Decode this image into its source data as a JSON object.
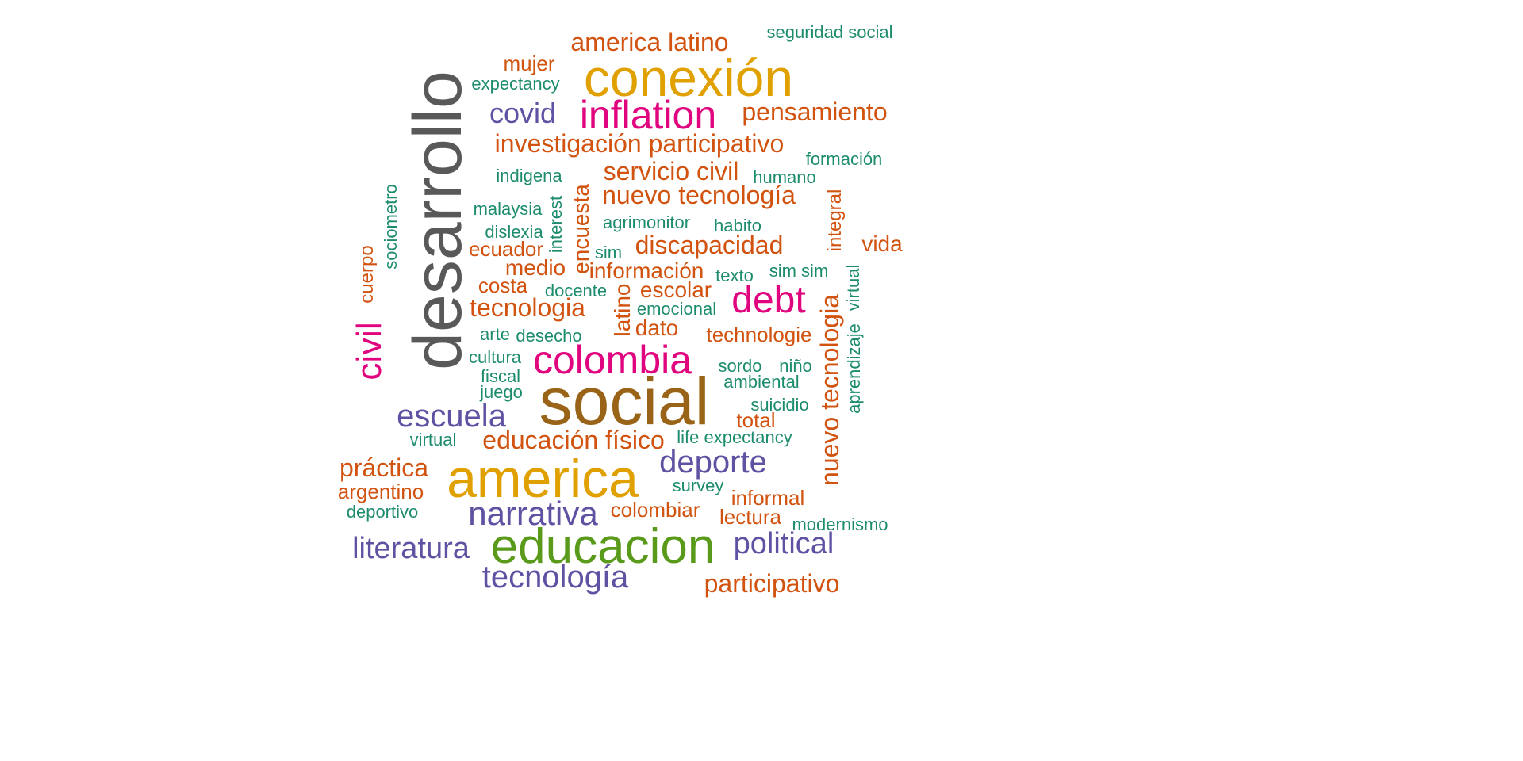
{
  "palette": {
    "gray": "#595959",
    "gold": "#e0a100",
    "brown": "#9a6418",
    "magenta": "#e0047f",
    "green": "#5a9a1a",
    "purple": "#6151a3",
    "orange": "#d2530f",
    "teal": "#1d8c6e"
  },
  "words": [
    {
      "text": "desarrollo",
      "color": "gray",
      "weight": 10,
      "orientation": "vertical"
    },
    {
      "text": "social",
      "color": "brown",
      "weight": 9,
      "orientation": "horizontal"
    },
    {
      "text": "conexión",
      "color": "gold",
      "weight": 8,
      "orientation": "horizontal"
    },
    {
      "text": "america",
      "color": "gold",
      "weight": 8,
      "orientation": "horizontal"
    },
    {
      "text": "educacion",
      "color": "green",
      "weight": 7,
      "orientation": "horizontal"
    },
    {
      "text": "inflation",
      "color": "magenta",
      "weight": 6,
      "orientation": "horizontal"
    },
    {
      "text": "colombia",
      "color": "magenta",
      "weight": 6,
      "orientation": "horizontal"
    },
    {
      "text": "debt",
      "color": "magenta",
      "weight": 6,
      "orientation": "horizontal"
    },
    {
      "text": "civil",
      "color": "magenta",
      "weight": 5,
      "orientation": "vertical"
    },
    {
      "text": "narrativa",
      "color": "purple",
      "weight": 5,
      "orientation": "horizontal"
    },
    {
      "text": "escuela",
      "color": "purple",
      "weight": 5,
      "orientation": "horizontal"
    },
    {
      "text": "deporte",
      "color": "purple",
      "weight": 5,
      "orientation": "horizontal"
    },
    {
      "text": "tecnología",
      "color": "purple",
      "weight": 5,
      "orientation": "horizontal"
    },
    {
      "text": "literatura",
      "color": "purple",
      "weight": 5,
      "orientation": "horizontal"
    },
    {
      "text": "political",
      "color": "purple",
      "weight": 5,
      "orientation": "horizontal"
    },
    {
      "text": "covid",
      "color": "purple",
      "weight": 5,
      "orientation": "horizontal"
    },
    {
      "text": "america latino",
      "color": "orange",
      "weight": 4,
      "orientation": "horizontal"
    },
    {
      "text": "pensamiento",
      "color": "orange",
      "weight": 4,
      "orientation": "horizontal"
    },
    {
      "text": "investigación participativo",
      "color": "orange",
      "weight": 4,
      "orientation": "horizontal"
    },
    {
      "text": "servicio civil",
      "color": "orange",
      "weight": 4,
      "orientation": "horizontal"
    },
    {
      "text": "nuevo tecnología",
      "color": "orange",
      "weight": 4,
      "orientation": "horizontal"
    },
    {
      "text": "discapacidad",
      "color": "orange",
      "weight": 4,
      "orientation": "horizontal"
    },
    {
      "text": "tecnologia",
      "color": "orange",
      "weight": 4,
      "orientation": "horizontal"
    },
    {
      "text": "educación físico",
      "color": "orange",
      "weight": 4,
      "orientation": "horizontal"
    },
    {
      "text": "práctica",
      "color": "orange",
      "weight": 4,
      "orientation": "horizontal"
    },
    {
      "text": "participativo",
      "color": "orange",
      "weight": 4,
      "orientation": "horizontal"
    },
    {
      "text": "nuevo tecnologia",
      "color": "orange",
      "weight": 4,
      "orientation": "vertical"
    },
    {
      "text": "encuesta",
      "color": "orange",
      "weight": 3,
      "orientation": "vertical"
    },
    {
      "text": "latino",
      "color": "orange",
      "weight": 3,
      "orientation": "vertical"
    },
    {
      "text": "vida",
      "color": "orange",
      "weight": 3,
      "orientation": "horizontal"
    },
    {
      "text": "medio",
      "color": "orange",
      "weight": 3,
      "orientation": "horizontal"
    },
    {
      "text": "información",
      "color": "orange",
      "weight": 3,
      "orientation": "horizontal"
    },
    {
      "text": "dato",
      "color": "orange",
      "weight": 3,
      "orientation": "horizontal"
    },
    {
      "text": "escolar",
      "color": "orange",
      "weight": 3,
      "orientation": "horizontal"
    },
    {
      "text": "technologie",
      "color": "orange",
      "weight": 3,
      "orientation": "horizontal"
    },
    {
      "text": "informal",
      "color": "orange",
      "weight": 3,
      "orientation": "horizontal"
    },
    {
      "text": "lectura",
      "color": "orange",
      "weight": 3,
      "orientation": "horizontal"
    },
    {
      "text": "colombiar",
      "color": "orange",
      "weight": 3,
      "orientation": "horizontal"
    },
    {
      "text": "total",
      "color": "orange",
      "weight": 3,
      "orientation": "horizontal"
    },
    {
      "text": "argentino",
      "color": "orange",
      "weight": 3,
      "orientation": "horizontal"
    },
    {
      "text": "mujer",
      "color": "orange",
      "weight": 3,
      "orientation": "horizontal"
    },
    {
      "text": "ecuador",
      "color": "orange",
      "weight": 3,
      "orientation": "horizontal"
    },
    {
      "text": "costa",
      "color": "orange",
      "weight": 3,
      "orientation": "horizontal"
    },
    {
      "text": "cuerpo",
      "color": "orange",
      "weight": 3,
      "orientation": "vertical"
    },
    {
      "text": "integral",
      "color": "orange",
      "weight": 3,
      "orientation": "vertical"
    },
    {
      "text": "seguridad social",
      "color": "teal",
      "weight": 2,
      "orientation": "horizontal"
    },
    {
      "text": "expectancy",
      "color": "teal",
      "weight": 2,
      "orientation": "horizontal"
    },
    {
      "text": "formación",
      "color": "teal",
      "weight": 2,
      "orientation": "horizontal"
    },
    {
      "text": "humano",
      "color": "teal",
      "weight": 2,
      "orientation": "horizontal"
    },
    {
      "text": "indigena",
      "color": "teal",
      "weight": 2,
      "orientation": "horizontal"
    },
    {
      "text": "malaysia",
      "color": "teal",
      "weight": 2,
      "orientation": "horizontal"
    },
    {
      "text": "dislexia",
      "color": "teal",
      "weight": 2,
      "orientation": "horizontal"
    },
    {
      "text": "agrimonitor",
      "color": "teal",
      "weight": 2,
      "orientation": "horizontal"
    },
    {
      "text": "habito",
      "color": "teal",
      "weight": 2,
      "orientation": "horizontal"
    },
    {
      "text": "sim",
      "color": "teal",
      "weight": 2,
      "orientation": "horizontal"
    },
    {
      "text": "texto",
      "color": "teal",
      "weight": 2,
      "orientation": "horizontal"
    },
    {
      "text": "sim sim",
      "color": "teal",
      "weight": 2,
      "orientation": "horizontal"
    },
    {
      "text": "docente",
      "color": "teal",
      "weight": 2,
      "orientation": "horizontal"
    },
    {
      "text": "emocional",
      "color": "teal",
      "weight": 2,
      "orientation": "horizontal"
    },
    {
      "text": "arte",
      "color": "teal",
      "weight": 2,
      "orientation": "horizontal"
    },
    {
      "text": "desecho",
      "color": "teal",
      "weight": 2,
      "orientation": "horizontal"
    },
    {
      "text": "cultura",
      "color": "teal",
      "weight": 2,
      "orientation": "horizontal"
    },
    {
      "text": "fiscal",
      "color": "teal",
      "weight": 2,
      "orientation": "horizontal"
    },
    {
      "text": "juego",
      "color": "teal",
      "weight": 2,
      "orientation": "horizontal"
    },
    {
      "text": "sordo",
      "color": "teal",
      "weight": 2,
      "orientation": "horizontal"
    },
    {
      "text": "niño",
      "color": "teal",
      "weight": 2,
      "orientation": "horizontal"
    },
    {
      "text": "ambiental",
      "color": "teal",
      "weight": 2,
      "orientation": "horizontal"
    },
    {
      "text": "suicidio",
      "color": "teal",
      "weight": 2,
      "orientation": "horizontal"
    },
    {
      "text": "life expectancy",
      "color": "teal",
      "weight": 2,
      "orientation": "horizontal"
    },
    {
      "text": "virtual",
      "color": "teal",
      "weight": 2,
      "orientation": "horizontal"
    },
    {
      "text": "survey",
      "color": "teal",
      "weight": 2,
      "orientation": "horizontal"
    },
    {
      "text": "deportivo",
      "color": "teal",
      "weight": 2,
      "orientation": "horizontal"
    },
    {
      "text": "modernismo",
      "color": "teal",
      "weight": 2,
      "orientation": "horizontal"
    },
    {
      "text": "sociometro",
      "color": "teal",
      "weight": 2,
      "orientation": "vertical"
    },
    {
      "text": "interest",
      "color": "teal",
      "weight": 2,
      "orientation": "vertical"
    },
    {
      "text": "virtual",
      "color": "teal",
      "weight": 2,
      "orientation": "vertical"
    },
    {
      "text": "aprendizaje",
      "color": "teal",
      "weight": 2,
      "orientation": "vertical"
    }
  ]
}
